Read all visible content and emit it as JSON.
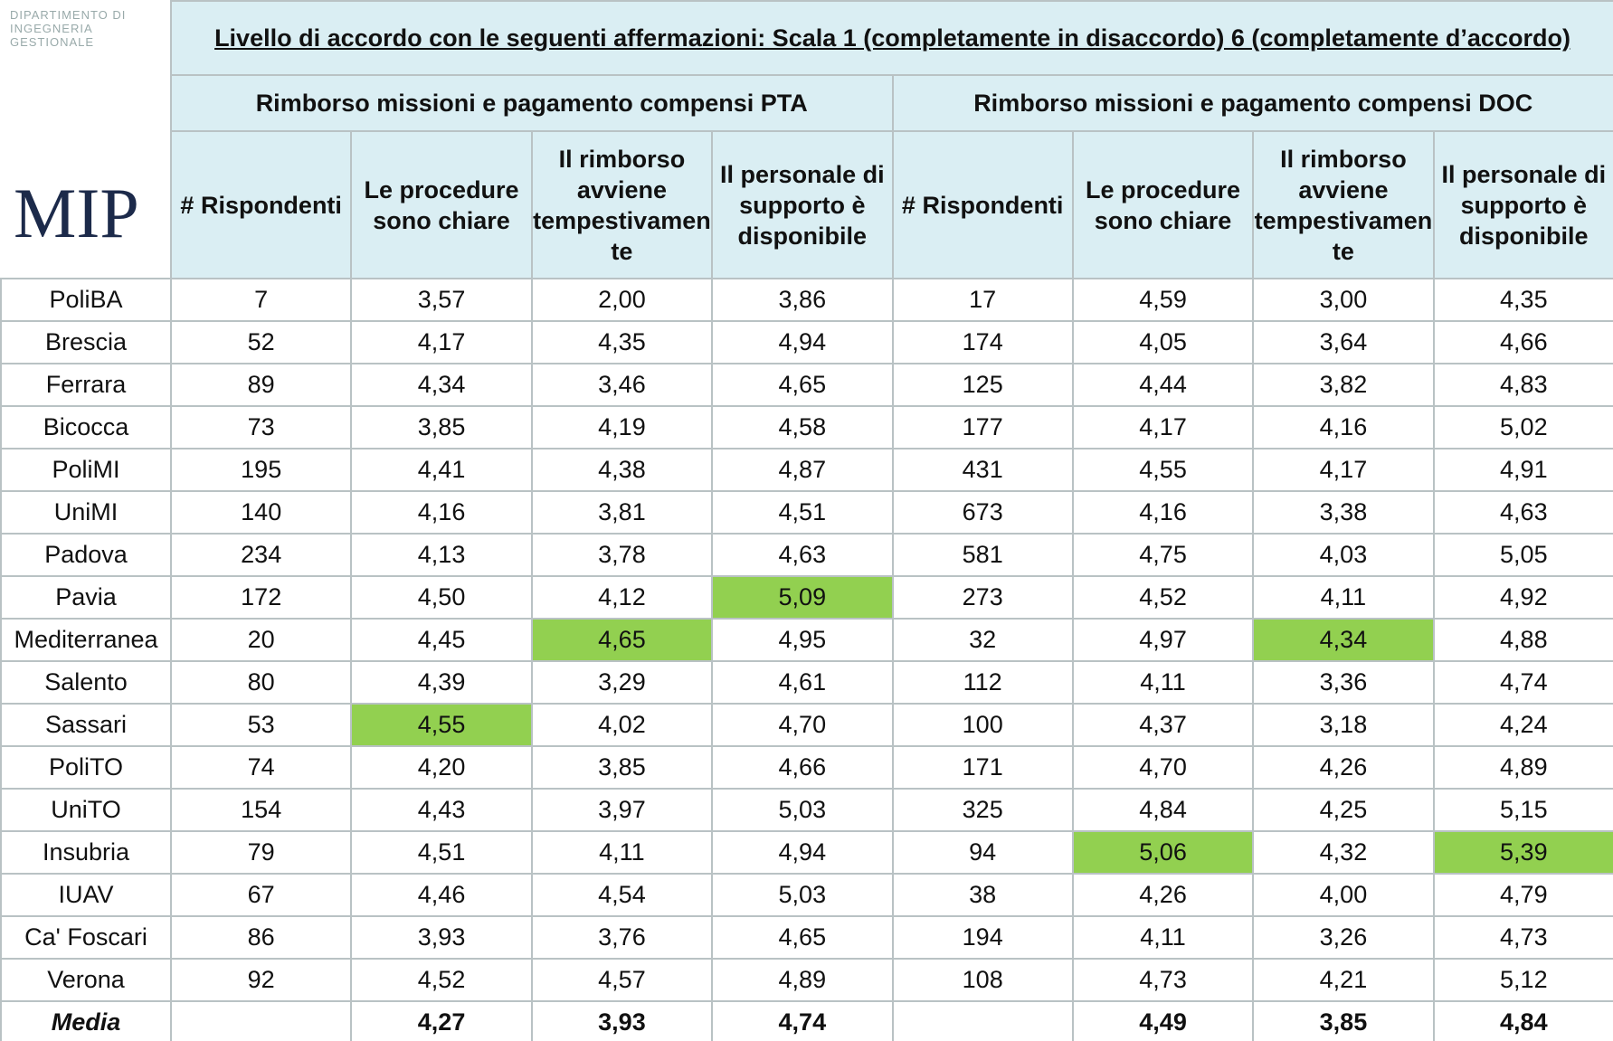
{
  "logo": {
    "department": "DIPARTIMENTO DI INGEGNERIA GESTIONALE",
    "name": "MIP"
  },
  "header": {
    "title": "Livello di accordo con le seguenti affermazioni: Scala 1 (completamente in disaccordo) 6 (completamente d’accordo)",
    "groups": [
      "Rimborso missioni e pagamento compensi PTA",
      "Rimborso missioni e pagamento compensi DOC"
    ],
    "columns": [
      "# Rispondenti",
      "Le procedure sono chiare",
      "Il rimborso avviene tempestivamente",
      "Il personale di supporto è disponibile",
      "# Rispondenti",
      "Le procedure sono chiare",
      "Il rimborso avviene tempestivamente",
      "Il personale di supporto è disponibile"
    ]
  },
  "table": {
    "rows": [
      [
        "PoliBA",
        "7",
        "3,57",
        "2,00",
        "3,86",
        "17",
        "4,59",
        "3,00",
        "4,35"
      ],
      [
        "Brescia",
        "52",
        "4,17",
        "4,35",
        "4,94",
        "174",
        "4,05",
        "3,64",
        "4,66"
      ],
      [
        "Ferrara",
        "89",
        "4,34",
        "3,46",
        "4,65",
        "125",
        "4,44",
        "3,82",
        "4,83"
      ],
      [
        "Bicocca",
        "73",
        "3,85",
        "4,19",
        "4,58",
        "177",
        "4,17",
        "4,16",
        "5,02"
      ],
      [
        "PoliMI",
        "195",
        "4,41",
        "4,38",
        "4,87",
        "431",
        "4,55",
        "4,17",
        "4,91"
      ],
      [
        "UniMI",
        "140",
        "4,16",
        "3,81",
        "4,51",
        "673",
        "4,16",
        "3,38",
        "4,63"
      ],
      [
        "Padova",
        "234",
        "4,13",
        "3,78",
        "4,63",
        "581",
        "4,75",
        "4,03",
        "5,05"
      ],
      [
        "Pavia",
        "172",
        "4,50",
        "4,12",
        "5,09",
        "273",
        "4,52",
        "4,11",
        "4,92"
      ],
      [
        "Mediterranea",
        "20",
        "4,45",
        "4,65",
        "4,95",
        "32",
        "4,97",
        "4,34",
        "4,88"
      ],
      [
        "Salento",
        "80",
        "4,39",
        "3,29",
        "4,61",
        "112",
        "4,11",
        "3,36",
        "4,74"
      ],
      [
        "Sassari",
        "53",
        "4,55",
        "4,02",
        "4,70",
        "100",
        "4,37",
        "3,18",
        "4,24"
      ],
      [
        "PoliTO",
        "74",
        "4,20",
        "3,85",
        "4,66",
        "171",
        "4,70",
        "4,26",
        "4,89"
      ],
      [
        "UniTO",
        "154",
        "4,43",
        "3,97",
        "5,03",
        "325",
        "4,84",
        "4,25",
        "5,15"
      ],
      [
        "Insubria",
        "79",
        "4,51",
        "4,11",
        "4,94",
        "94",
        "5,06",
        "4,32",
        "5,39"
      ],
      [
        "IUAV",
        "67",
        "4,46",
        "4,54",
        "5,03",
        "38",
        "4,26",
        "4,00",
        "4,79"
      ],
      [
        "Ca' Foscari",
        "86",
        "3,93",
        "3,76",
        "4,65",
        "194",
        "4,11",
        "3,26",
        "4,73"
      ],
      [
        "Verona",
        "92",
        "4,52",
        "4,57",
        "4,89",
        "108",
        "4,73",
        "4,21",
        "5,12"
      ]
    ],
    "highlighted": [
      [
        7,
        4
      ],
      [
        8,
        3
      ],
      [
        8,
        7
      ],
      [
        10,
        2
      ],
      [
        13,
        6
      ],
      [
        13,
        8
      ]
    ],
    "highlight_color": "#92d050",
    "media": {
      "label": "Media",
      "pta": [
        "4,27",
        "3,93",
        "4,74"
      ],
      "doc": [
        "4,49",
        "3,85",
        "4,84"
      ]
    }
  }
}
